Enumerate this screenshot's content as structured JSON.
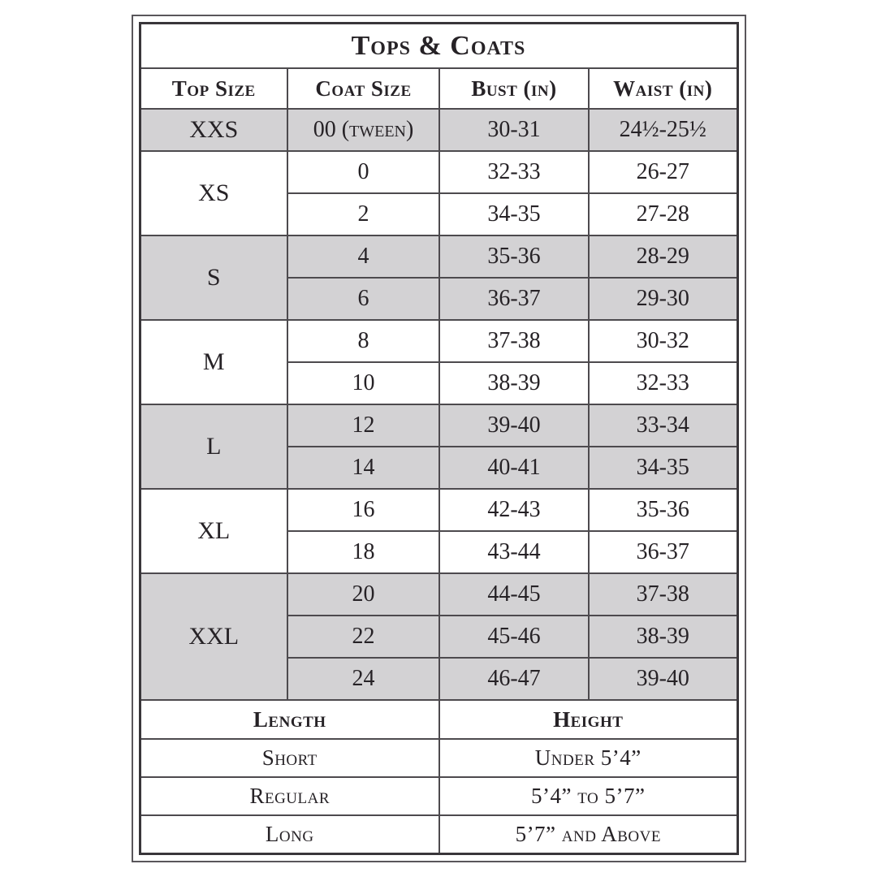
{
  "title": "Tops & Coats",
  "columns": [
    "Top Size",
    "Coat Size",
    "Bust (in)",
    "Waist (in)"
  ],
  "groups": [
    {
      "top_size": "XXS",
      "shaded": true,
      "rows": [
        [
          "00 (tween)",
          "30-31",
          "24½-25½"
        ]
      ]
    },
    {
      "top_size": "XS",
      "shaded": false,
      "rows": [
        [
          "0",
          "32-33",
          "26-27"
        ],
        [
          "2",
          "34-35",
          "27-28"
        ]
      ]
    },
    {
      "top_size": "S",
      "shaded": true,
      "rows": [
        [
          "4",
          "35-36",
          "28-29"
        ],
        [
          "6",
          "36-37",
          "29-30"
        ]
      ]
    },
    {
      "top_size": "M",
      "shaded": false,
      "rows": [
        [
          "8",
          "37-38",
          "30-32"
        ],
        [
          "10",
          "38-39",
          "32-33"
        ]
      ]
    },
    {
      "top_size": "L",
      "shaded": true,
      "rows": [
        [
          "12",
          "39-40",
          "33-34"
        ],
        [
          "14",
          "40-41",
          "34-35"
        ]
      ]
    },
    {
      "top_size": "XL",
      "shaded": false,
      "rows": [
        [
          "16",
          "42-43",
          "35-36"
        ],
        [
          "18",
          "43-44",
          "36-37"
        ]
      ]
    },
    {
      "top_size": "XXL",
      "shaded": true,
      "rows": [
        [
          "20",
          "44-45",
          "37-38"
        ],
        [
          "22",
          "45-46",
          "38-39"
        ],
        [
          "24",
          "46-47",
          "39-40"
        ]
      ]
    }
  ],
  "length_height": {
    "headers": [
      "Length",
      "Height"
    ],
    "rows": [
      {
        "length": "Short",
        "height": "Under 5’4”",
        "shaded": true
      },
      {
        "length": "Regular",
        "height": "5’4” to 5’7”",
        "shaded": false
      },
      {
        "length": "Long",
        "height": "5’7” and Above",
        "shaded": true
      }
    ]
  },
  "colors": {
    "shaded_row": "#d3d2d4",
    "border": "#4d4a4e",
    "outer_border": "#39363a",
    "text": "#262226",
    "background": "#ffffff"
  }
}
